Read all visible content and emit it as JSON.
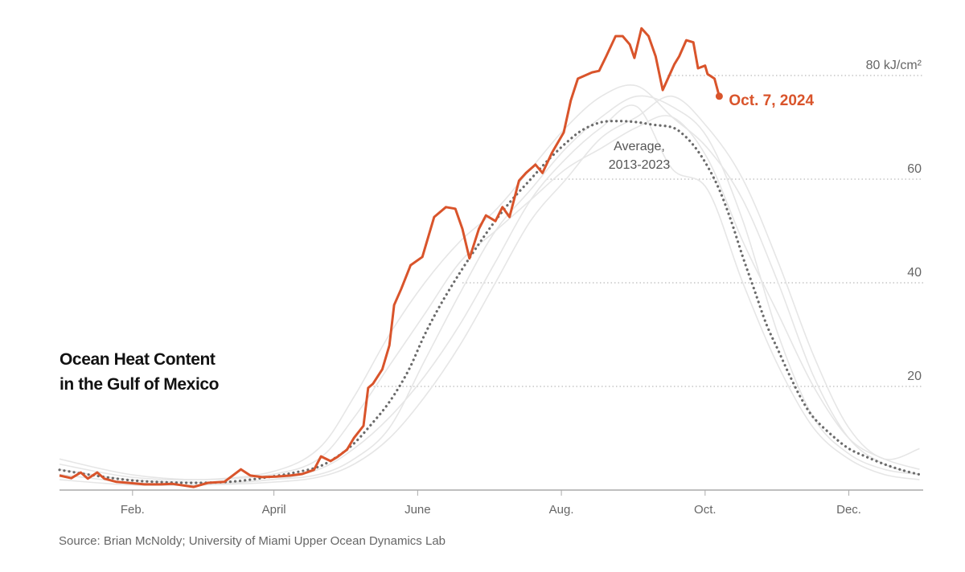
{
  "chart_data": {
    "type": "line",
    "title": "Ocean Heat Content in the Gulf of Mexico",
    "title_lines": [
      "Ocean Heat Content",
      "in the Gulf of Mexico"
    ],
    "source": "Source: Brian McNoldy; University of Miami Upper Ocean Dynamics Lab",
    "x_unit": "day of year",
    "xlim": [
      0,
      365
    ],
    "ylim": [
      0,
      90
    ],
    "x_ticks": [
      {
        "label": "Feb.",
        "day": 31
      },
      {
        "label": "April",
        "day": 91
      },
      {
        "label": "June",
        "day": 152
      },
      {
        "label": "Aug.",
        "day": 213
      },
      {
        "label": "Oct.",
        "day": 274
      },
      {
        "label": "Dec.",
        "day": 335
      }
    ],
    "y_ticks": [
      {
        "label": "20",
        "value": 20
      },
      {
        "label": "40",
        "value": 40
      },
      {
        "label": "60",
        "value": 60
      },
      {
        "label": "80 kJ/cm²",
        "value": 80
      }
    ],
    "grid": "horizontal dotted",
    "colors": {
      "current": "#d9542b",
      "average": "#6b6b6b",
      "past_years": "#e6e6e6",
      "grid": "#bbbbbb",
      "text": "#666666"
    },
    "current": {
      "label": "Oct. 7, 2024",
      "x": [
        0,
        5,
        9,
        12,
        16,
        19,
        24,
        29,
        36,
        43,
        48,
        57,
        63,
        70,
        77,
        81,
        86,
        92,
        98,
        103,
        108,
        111,
        115,
        118,
        122,
        125,
        129,
        131,
        133,
        137,
        140,
        142,
        145,
        149,
        154,
        156,
        159,
        164,
        168,
        171,
        174,
        178,
        181,
        185,
        188,
        191,
        195,
        198,
        202,
        205,
        209,
        214,
        217,
        220,
        226,
        229,
        232,
        236,
        239,
        242,
        244,
        247,
        250,
        253,
        256,
        261,
        263,
        266,
        269,
        271,
        274,
        275,
        278,
        280
      ],
      "y": [
        2.8,
        2.3,
        3.4,
        2.2,
        3.4,
        2.2,
        1.6,
        1.4,
        1.1,
        1.1,
        1.2,
        0.6,
        1.4,
        1.6,
        4.0,
        2.8,
        2.5,
        2.6,
        2.8,
        3.1,
        3.9,
        6.5,
        5.6,
        6.4,
        7.8,
        10.1,
        12.4,
        19.7,
        20.5,
        23.3,
        27.9,
        35.7,
        38.8,
        43.4,
        45.0,
        48.1,
        52.7,
        54.6,
        54.3,
        50.4,
        44.7,
        50.4,
        53.0,
        51.9,
        54.6,
        52.7,
        59.7,
        61.2,
        62.8,
        61.2,
        65.1,
        69.0,
        75.2,
        79.4,
        80.6,
        80.9,
        83.7,
        87.6,
        87.6,
        86.0,
        83.4,
        89.1,
        87.6,
        83.7,
        77.2,
        82.2,
        83.7,
        86.8,
        86.4,
        81.4,
        81.9,
        80.3,
        79.4,
        76.0
      ]
    },
    "average": {
      "label": "Average, 2013-2023",
      "label_lines": [
        "Average,",
        "2013-2023"
      ],
      "x": [
        0,
        15,
        30,
        45,
        60,
        75,
        90,
        100,
        110,
        118,
        125,
        132,
        140,
        148,
        155,
        162,
        170,
        178,
        185,
        192,
        200,
        207,
        215,
        222,
        230,
        238,
        245,
        252,
        260,
        265,
        270,
        275,
        280,
        285,
        290,
        295,
        300,
        305,
        310,
        315,
        320,
        328,
        335,
        342,
        350,
        358,
        365
      ],
      "y": [
        3.9,
        2.8,
        1.9,
        1.5,
        1.4,
        1.7,
        2.6,
        3.4,
        4.5,
        6.5,
        9,
        12.5,
        17,
        23,
        30,
        36,
        42,
        47.5,
        52,
        56,
        60,
        63.5,
        67,
        69.5,
        71,
        71.2,
        71,
        70.5,
        70,
        68.5,
        66,
        62.5,
        58,
        52,
        45,
        38.5,
        32,
        27,
        22,
        17.5,
        14,
        10.5,
        8,
        6.5,
        5,
        3.8,
        3
      ]
    },
    "past_years": [
      {
        "x": [
          0,
          30,
          60,
          90,
          110,
          125,
          140,
          155,
          170,
          185,
          200,
          215,
          230,
          245,
          260,
          275,
          290,
          305,
          320,
          335,
          350,
          365
        ],
        "y": [
          3,
          1.5,
          1,
          2,
          3,
          6,
          12,
          25,
          38,
          50,
          58,
          66,
          72,
          76,
          74,
          68,
          52,
          30,
          14,
          7,
          4,
          3
        ]
      },
      {
        "x": [
          0,
          30,
          60,
          90,
          110,
          125,
          140,
          155,
          170,
          185,
          200,
          215,
          230,
          245,
          260,
          275,
          290,
          305,
          320,
          335,
          350,
          365
        ],
        "y": [
          6,
          3,
          2,
          3,
          6,
          14,
          24,
          34,
          44,
          50,
          56,
          62,
          66,
          70,
          72,
          64,
          48,
          34,
          20,
          10,
          6,
          4
        ]
      },
      {
        "x": [
          0,
          30,
          60,
          90,
          110,
          125,
          140,
          155,
          170,
          185,
          200,
          215,
          230,
          245,
          260,
          275,
          290,
          305,
          320,
          335,
          350,
          365
        ],
        "y": [
          4,
          2,
          1.5,
          2,
          4,
          8,
          14,
          22,
          32,
          44,
          56,
          64,
          70,
          74,
          62,
          58,
          40,
          24,
          12,
          6,
          3,
          2
        ]
      },
      {
        "x": [
          0,
          30,
          60,
          90,
          110,
          125,
          140,
          155,
          170,
          185,
          200,
          215,
          230,
          245,
          260,
          275,
          290,
          305,
          320,
          335,
          350,
          365
        ],
        "y": [
          5,
          2.5,
          2,
          3.5,
          8,
          18,
          30,
          40,
          48,
          54,
          62,
          70,
          76,
          78,
          72,
          66,
          56,
          40,
          22,
          10,
          5,
          3
        ]
      },
      {
        "x": [
          0,
          30,
          60,
          90,
          110,
          125,
          140,
          155,
          170,
          185,
          200,
          215,
          230,
          245,
          260,
          275,
          290,
          305,
          320,
          335,
          350,
          365
        ],
        "y": [
          2,
          1,
          1,
          1.5,
          2.5,
          5,
          10,
          18,
          28,
          40,
          52,
          60,
          68,
          72,
          76,
          70,
          60,
          44,
          26,
          12,
          6,
          8
        ]
      }
    ]
  }
}
